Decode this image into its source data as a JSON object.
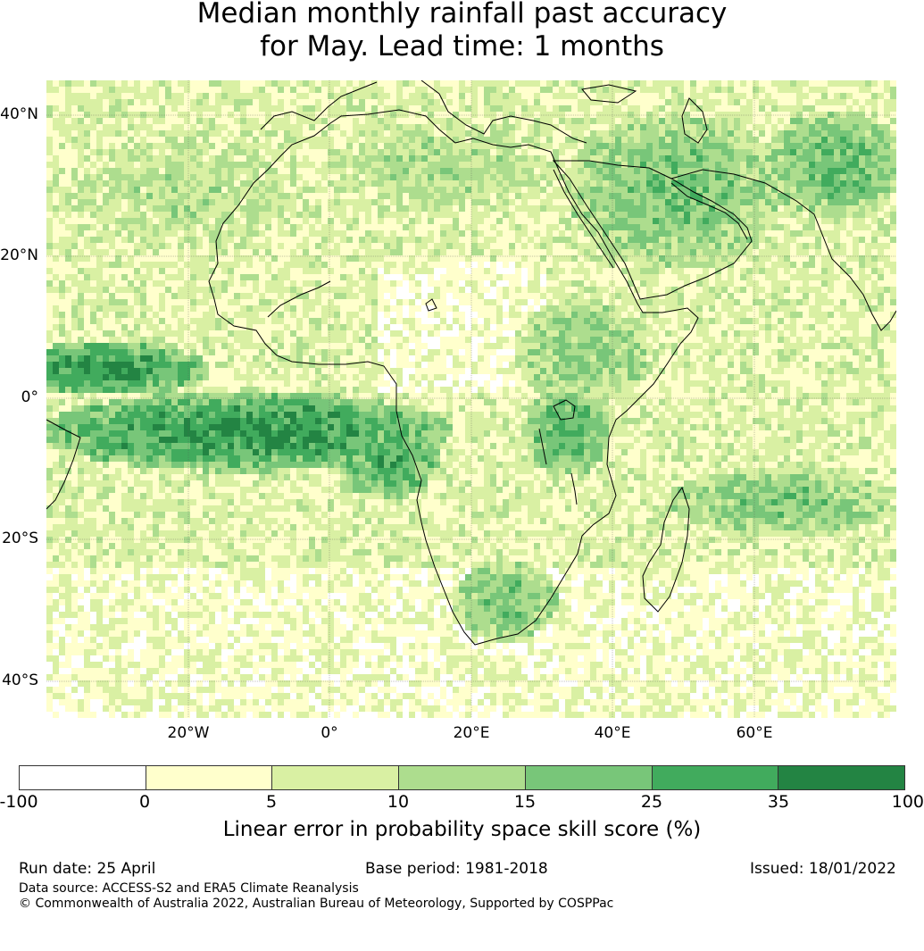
{
  "title": {
    "line1": "Median monthly rainfall past accuracy",
    "line2": "for May. Lead time: 1 months"
  },
  "map": {
    "lat_labels": [
      "40°N",
      "20°N",
      "0°",
      "20°S",
      "40°S"
    ],
    "lon_labels": [
      "20°W",
      "0°",
      "20°E",
      "40°E",
      "60°E"
    ],
    "colors": {
      "c0": "#ffffff",
      "c1": "#ffffcc",
      "c2": "#d9f0a3",
      "c3": "#addd8e",
      "c4": "#78c679",
      "c5": "#41ab5d",
      "c6": "#238443",
      "coastline": "#000000",
      "grid": "#555555"
    }
  },
  "colorbar": {
    "ticks": [
      "-100",
      "0",
      "5",
      "10",
      "15",
      "25",
      "35",
      "100"
    ],
    "label": "Linear error in probability space skill score (%)"
  },
  "footer": {
    "run_date": "Run date: 25 April",
    "base_period": "Base period: 1981-2018",
    "issued": "Issued: 18/01/2022",
    "data_source": "Data source: ACCESS-S2 and ERA5 Climate Reanalysis",
    "copyright": "© Commonwealth of Australia 2022, Australian Bureau of Meteorology, Supported by COSPPac"
  }
}
